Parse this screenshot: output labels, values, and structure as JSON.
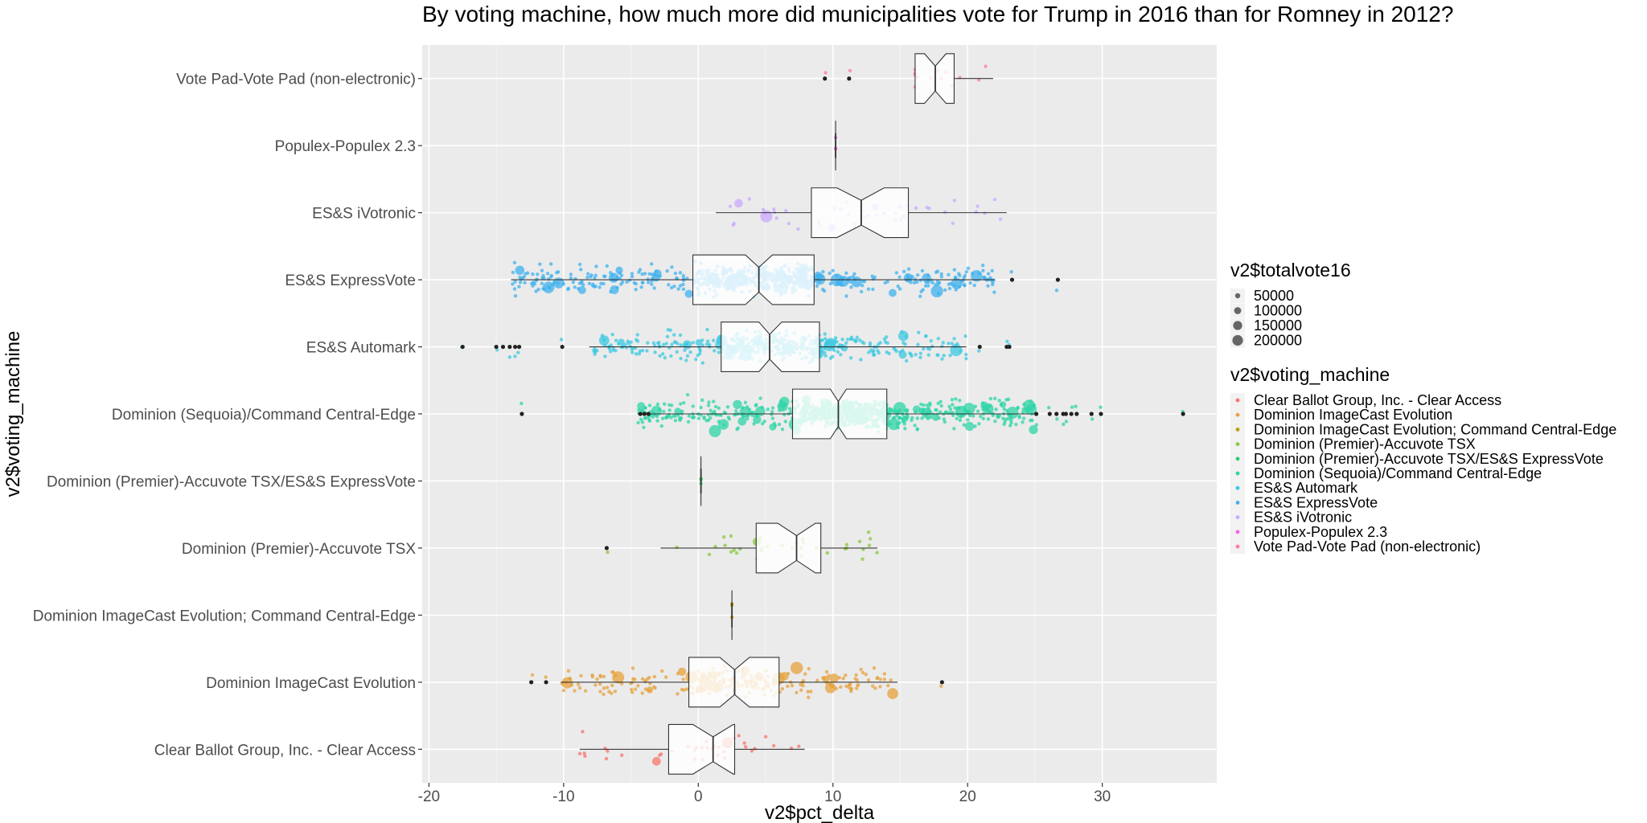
{
  "chart_data": {
    "type": "boxplot",
    "title": "By voting machine, how much more did municipalities vote for Trump in 2016 than for Romney in 2012?",
    "xlabel": "v2$pct_delta",
    "ylabel": "v2$voting_machine",
    "xlim": [
      -20.5,
      38.5
    ],
    "x_ticks": [
      "-20",
      "-10",
      "0",
      "10",
      "20",
      "30"
    ],
    "x_tick_values": [
      -20,
      -10,
      0,
      10,
      20,
      30
    ],
    "grid": true,
    "notched": true,
    "points": "jittered, colored by voting machine, sized by total vote",
    "legend_position": "right",
    "size_legend": {
      "title": "v2$totalvote16",
      "labels": [
        "50000",
        "100000",
        "150000",
        "200000"
      ],
      "values": [
        50000,
        100000,
        150000,
        200000
      ]
    },
    "color_legend": {
      "title": "v2$voting_machine"
    },
    "categories": [
      "Clear Ballot Group, Inc. - Clear Access",
      "Dominion ImageCast Evolution",
      "Dominion ImageCast Evolution; Command Central-Edge",
      "Dominion (Premier)-Accuvote TSX",
      "Dominion (Premier)-Accuvote TSX/ES&S ExpressVote",
      "Dominion (Sequoia)/Command Central-Edge",
      "ES&S Automark",
      "ES&S ExpressVote",
      "ES&S iVotronic",
      "Populex-Populex 2.3",
      "Vote Pad-Vote Pad (non-electronic)"
    ],
    "colors": [
      "#F8766D",
      "#DE8C00",
      "#B79F00",
      "#7CAE00",
      "#00BA38",
      "#00C08B",
      "#00BFC4",
      "#00B4F0",
      "#C77CFF",
      "#F564E3",
      "#FF64B0"
    ],
    "colors_drawn": [
      "#F8766D",
      "#E6A23C",
      "#B79F00",
      "#8DC63F",
      "#2ECC71",
      "#2DD4A7",
      "#3CC8E0",
      "#3FB1EE",
      "#C9A8FF",
      "#F564E3",
      "#FF7AA2"
    ],
    "boxes": [
      {
        "name": "Clear Ballot Group, Inc. - Clear Access",
        "min": -8.8,
        "q1": -2.2,
        "median": 1.1,
        "q3": 2.7,
        "max": 7.9,
        "notch": [
          -0.4,
          2.6
        ],
        "outliers": []
      },
      {
        "name": "Dominion ImageCast Evolution",
        "min": -10.2,
        "q1": -0.7,
        "median": 2.7,
        "q3": 6.0,
        "max": 14.8,
        "notch": [
          1.6,
          3.8
        ],
        "outliers": [
          -12.4,
          -11.3,
          18.1
        ]
      },
      {
        "name": "Dominion ImageCast Evolution; Command Central-Edge",
        "min": 2.5,
        "q1": 2.5,
        "median": 2.5,
        "q3": 2.5,
        "max": 2.5,
        "notch": [
          2.5,
          2.5
        ],
        "outliers": []
      },
      {
        "name": "Dominion (Premier)-Accuvote TSX",
        "min": -2.8,
        "q1": 4.3,
        "median": 7.3,
        "q3": 9.1,
        "max": 13.3,
        "notch": [
          5.9,
          8.7
        ],
        "outliers": [
          -6.8
        ]
      },
      {
        "name": "Dominion (Premier)-Accuvote TSX/ES&S ExpressVote",
        "min": 0.2,
        "q1": 0.2,
        "median": 0.2,
        "q3": 0.2,
        "max": 0.2,
        "notch": [
          0.2,
          0.2
        ],
        "outliers": []
      },
      {
        "name": "Dominion (Sequoia)/Command Central-Edge",
        "min": -4.5,
        "q1": 7.0,
        "median": 10.4,
        "q3": 14.0,
        "max": 25.0,
        "notch": [
          9.8,
          11.0
        ],
        "outliers": [
          -13.1,
          -4.3,
          -4.0,
          -3.7,
          25.1,
          26.1,
          26.6,
          27.1,
          27.3,
          27.7,
          28.1,
          29.2,
          29.9,
          36.0
        ]
      },
      {
        "name": "ES&S Automark",
        "min": -8.1,
        "q1": 1.7,
        "median": 5.3,
        "q3": 9.0,
        "max": 19.9,
        "notch": [
          4.5,
          6.2
        ],
        "outliers": [
          -17.5,
          -15.0,
          -14.5,
          -14.0,
          -13.6,
          -13.3,
          -10.1,
          20.9,
          22.9,
          23.1
        ]
      },
      {
        "name": "ES&S ExpressVote",
        "min": -13.9,
        "q1": -0.4,
        "median": 4.5,
        "q3": 8.6,
        "max": 22.0,
        "notch": [
          3.5,
          5.5
        ],
        "outliers": [
          23.3,
          26.7
        ]
      },
      {
        "name": "ES&S iVotronic",
        "min": 1.3,
        "q1": 8.4,
        "median": 12.1,
        "q3": 15.6,
        "max": 22.9,
        "notch": [
          10.3,
          13.8
        ],
        "outliers": []
      },
      {
        "name": "Populex-Populex 2.3",
        "min": 10.2,
        "q1": 10.2,
        "median": 10.2,
        "q3": 10.2,
        "max": 10.2,
        "notch": [
          10.2,
          10.2
        ],
        "outliers": []
      },
      {
        "name": "Vote Pad-Vote Pad (non-electronic)",
        "min": 16.1,
        "q1": 16.1,
        "median": 17.6,
        "q3": 19.0,
        "max": 21.9,
        "notch": [
          16.8,
          18.4
        ],
        "outliers": [
          9.4,
          11.2
        ]
      }
    ]
  }
}
